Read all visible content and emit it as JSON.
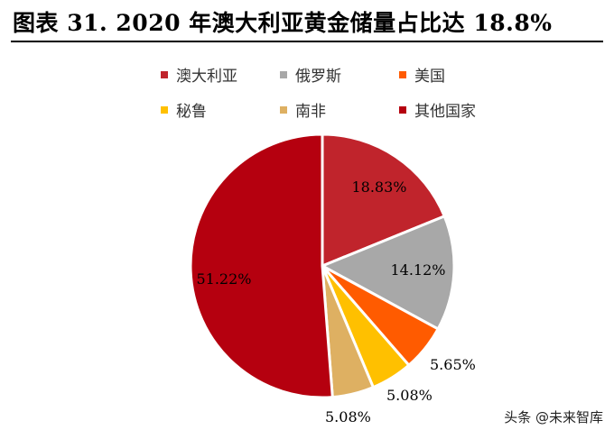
{
  "header": {
    "title": "图表 31. 2020 年澳大利亚黄金储量占比达 18.8%"
  },
  "chart_data": {
    "type": "pie",
    "title": "图表 31. 2020 年澳大利亚黄金储量占比达 18.8%",
    "legend_position": "top",
    "slices": [
      {
        "name": "澳大利亚",
        "value": 18.83,
        "label": "18.83%",
        "color": "#c0242c"
      },
      {
        "name": "俄罗斯",
        "value": 14.12,
        "label": "14.12%",
        "color": "#a8a8a8"
      },
      {
        "name": "美国",
        "value": 5.65,
        "label": "5.65%",
        "color": "#ff5b00"
      },
      {
        "name": "秘鲁",
        "value": 5.08,
        "label": "5.08%",
        "color": "#ffc000"
      },
      {
        "name": "南非",
        "value": 5.08,
        "label": "5.08%",
        "color": "#deb062"
      },
      {
        "name": "其他国家",
        "value": 51.22,
        "label": "51.22%",
        "color": "#b5000f"
      }
    ]
  },
  "watermark": "头条 @未来智库"
}
